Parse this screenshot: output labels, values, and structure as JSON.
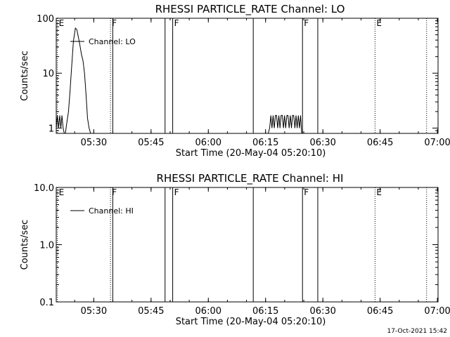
{
  "footer": {
    "timestamp": "17-Oct-2021 15:42"
  },
  "chart_data": [
    {
      "type": "line",
      "title": "RHESSI PARTICLE_RATE Channel: LO",
      "xlabel": "Start Time (20-May-04 05:20:10)",
      "ylabel": "Counts/sec",
      "yscale": "log",
      "ylim": [
        0.8,
        100
      ],
      "xlim_minutes_after_start": [
        0,
        100
      ],
      "x_ticks": [
        {
          "min": 9.83,
          "label": "05:30"
        },
        {
          "min": 24.83,
          "label": "05:45"
        },
        {
          "min": 39.83,
          "label": "06:00"
        },
        {
          "min": 54.83,
          "label": "06:15"
        },
        {
          "min": 69.83,
          "label": "06:30"
        },
        {
          "min": 84.83,
          "label": "06:45"
        },
        {
          "min": 99.83,
          "label": "07:00"
        }
      ],
      "y_ticks": [
        {
          "value": 100,
          "label": "100"
        },
        {
          "value": 10,
          "label": "10"
        },
        {
          "value": 1,
          "label": "1"
        }
      ],
      "legend": {
        "label": "Channel: LO",
        "position": "top-left"
      },
      "grid": false,
      "markers": [
        {
          "min": 0.3,
          "label": "E",
          "style": "dotted"
        },
        {
          "min": 14.2,
          "label": "F",
          "style": "dotted"
        },
        {
          "min": 14.8,
          "label": "",
          "style": "solid"
        },
        {
          "min": 28.5,
          "label": "",
          "style": "solid"
        },
        {
          "min": 30.5,
          "label": "F",
          "style": "solid"
        },
        {
          "min": 51.6,
          "label": "",
          "style": "solid"
        },
        {
          "min": 64.5,
          "label": "F",
          "style": "solid"
        },
        {
          "min": 68.5,
          "label": "",
          "style": "solid"
        },
        {
          "min": 83.5,
          "label": "E",
          "style": "dotted"
        },
        {
          "min": 97.0,
          "label": "",
          "style": "dotted"
        }
      ],
      "series": [
        {
          "name": "Channel: LO",
          "x": [
            0.0,
            0.3,
            0.6,
            0.9,
            1.2,
            1.5,
            1.8,
            2.1,
            2.4,
            2.8,
            3.2,
            3.6,
            4.0,
            4.5,
            5.0,
            5.4,
            5.8,
            6.2,
            6.6,
            7.0,
            7.4,
            7.8,
            8.2,
            8.6,
            9.0
          ],
          "y": [
            1.0,
            1.7,
            1.0,
            1.7,
            1.0,
            1.7,
            1.0,
            0.8,
            0.8,
            1.3,
            2.0,
            4.5,
            12,
            38,
            66,
            62,
            45,
            32,
            22,
            17,
            10,
            4,
            1.5,
            1.0,
            0.8
          ]
        },
        {
          "name": "Channel: LO",
          "x": [
            55.5,
            55.9,
            56.2,
            56.5,
            56.8,
            57.1,
            57.4,
            57.7,
            58.0,
            58.3,
            58.6,
            58.9,
            59.2,
            59.5,
            59.8,
            60.1,
            60.4,
            60.7,
            61.0,
            61.3,
            61.6,
            61.9,
            62.2,
            62.5,
            62.8,
            63.1,
            63.4,
            63.7,
            64.0,
            64.3
          ],
          "y": [
            0.8,
            1.0,
            1.7,
            1.0,
            1.7,
            1.0,
            1.7,
            1.7,
            1.0,
            1.7,
            1.0,
            1.7,
            1.7,
            1.0,
            1.7,
            1.0,
            1.7,
            1.7,
            1.0,
            1.7,
            1.0,
            1.7,
            1.7,
            1.0,
            1.7,
            1.0,
            1.7,
            1.0,
            1.7,
            0.8
          ]
        }
      ]
    },
    {
      "type": "line",
      "title": "RHESSI PARTICLE_RATE Channel: HI",
      "xlabel": "Start Time (20-May-04 05:20:10)",
      "ylabel": "Counts/sec",
      "yscale": "log",
      "ylim": [
        0.1,
        10
      ],
      "xlim_minutes_after_start": [
        0,
        100
      ],
      "x_ticks": [
        {
          "min": 9.83,
          "label": "05:30"
        },
        {
          "min": 24.83,
          "label": "05:45"
        },
        {
          "min": 39.83,
          "label": "06:00"
        },
        {
          "min": 54.83,
          "label": "06:15"
        },
        {
          "min": 69.83,
          "label": "06:30"
        },
        {
          "min": 84.83,
          "label": "06:45"
        },
        {
          "min": 99.83,
          "label": "07:00"
        }
      ],
      "y_ticks": [
        {
          "value": 10,
          "label": "10.0"
        },
        {
          "value": 1,
          "label": "1.0"
        },
        {
          "value": 0.1,
          "label": "0.1"
        }
      ],
      "legend": {
        "label": "Channel: HI",
        "position": "top-left"
      },
      "grid": false,
      "markers": [
        {
          "min": 0.3,
          "label": "E",
          "style": "dotted"
        },
        {
          "min": 14.2,
          "label": "F",
          "style": "dotted"
        },
        {
          "min": 14.8,
          "label": "",
          "style": "solid"
        },
        {
          "min": 28.5,
          "label": "",
          "style": "solid"
        },
        {
          "min": 30.5,
          "label": "F",
          "style": "solid"
        },
        {
          "min": 51.6,
          "label": "",
          "style": "solid"
        },
        {
          "min": 64.5,
          "label": "F",
          "style": "solid"
        },
        {
          "min": 68.5,
          "label": "",
          "style": "solid"
        },
        {
          "min": 83.5,
          "label": "E",
          "style": "dotted"
        },
        {
          "min": 97.0,
          "label": "",
          "style": "dotted"
        }
      ],
      "series": []
    }
  ]
}
